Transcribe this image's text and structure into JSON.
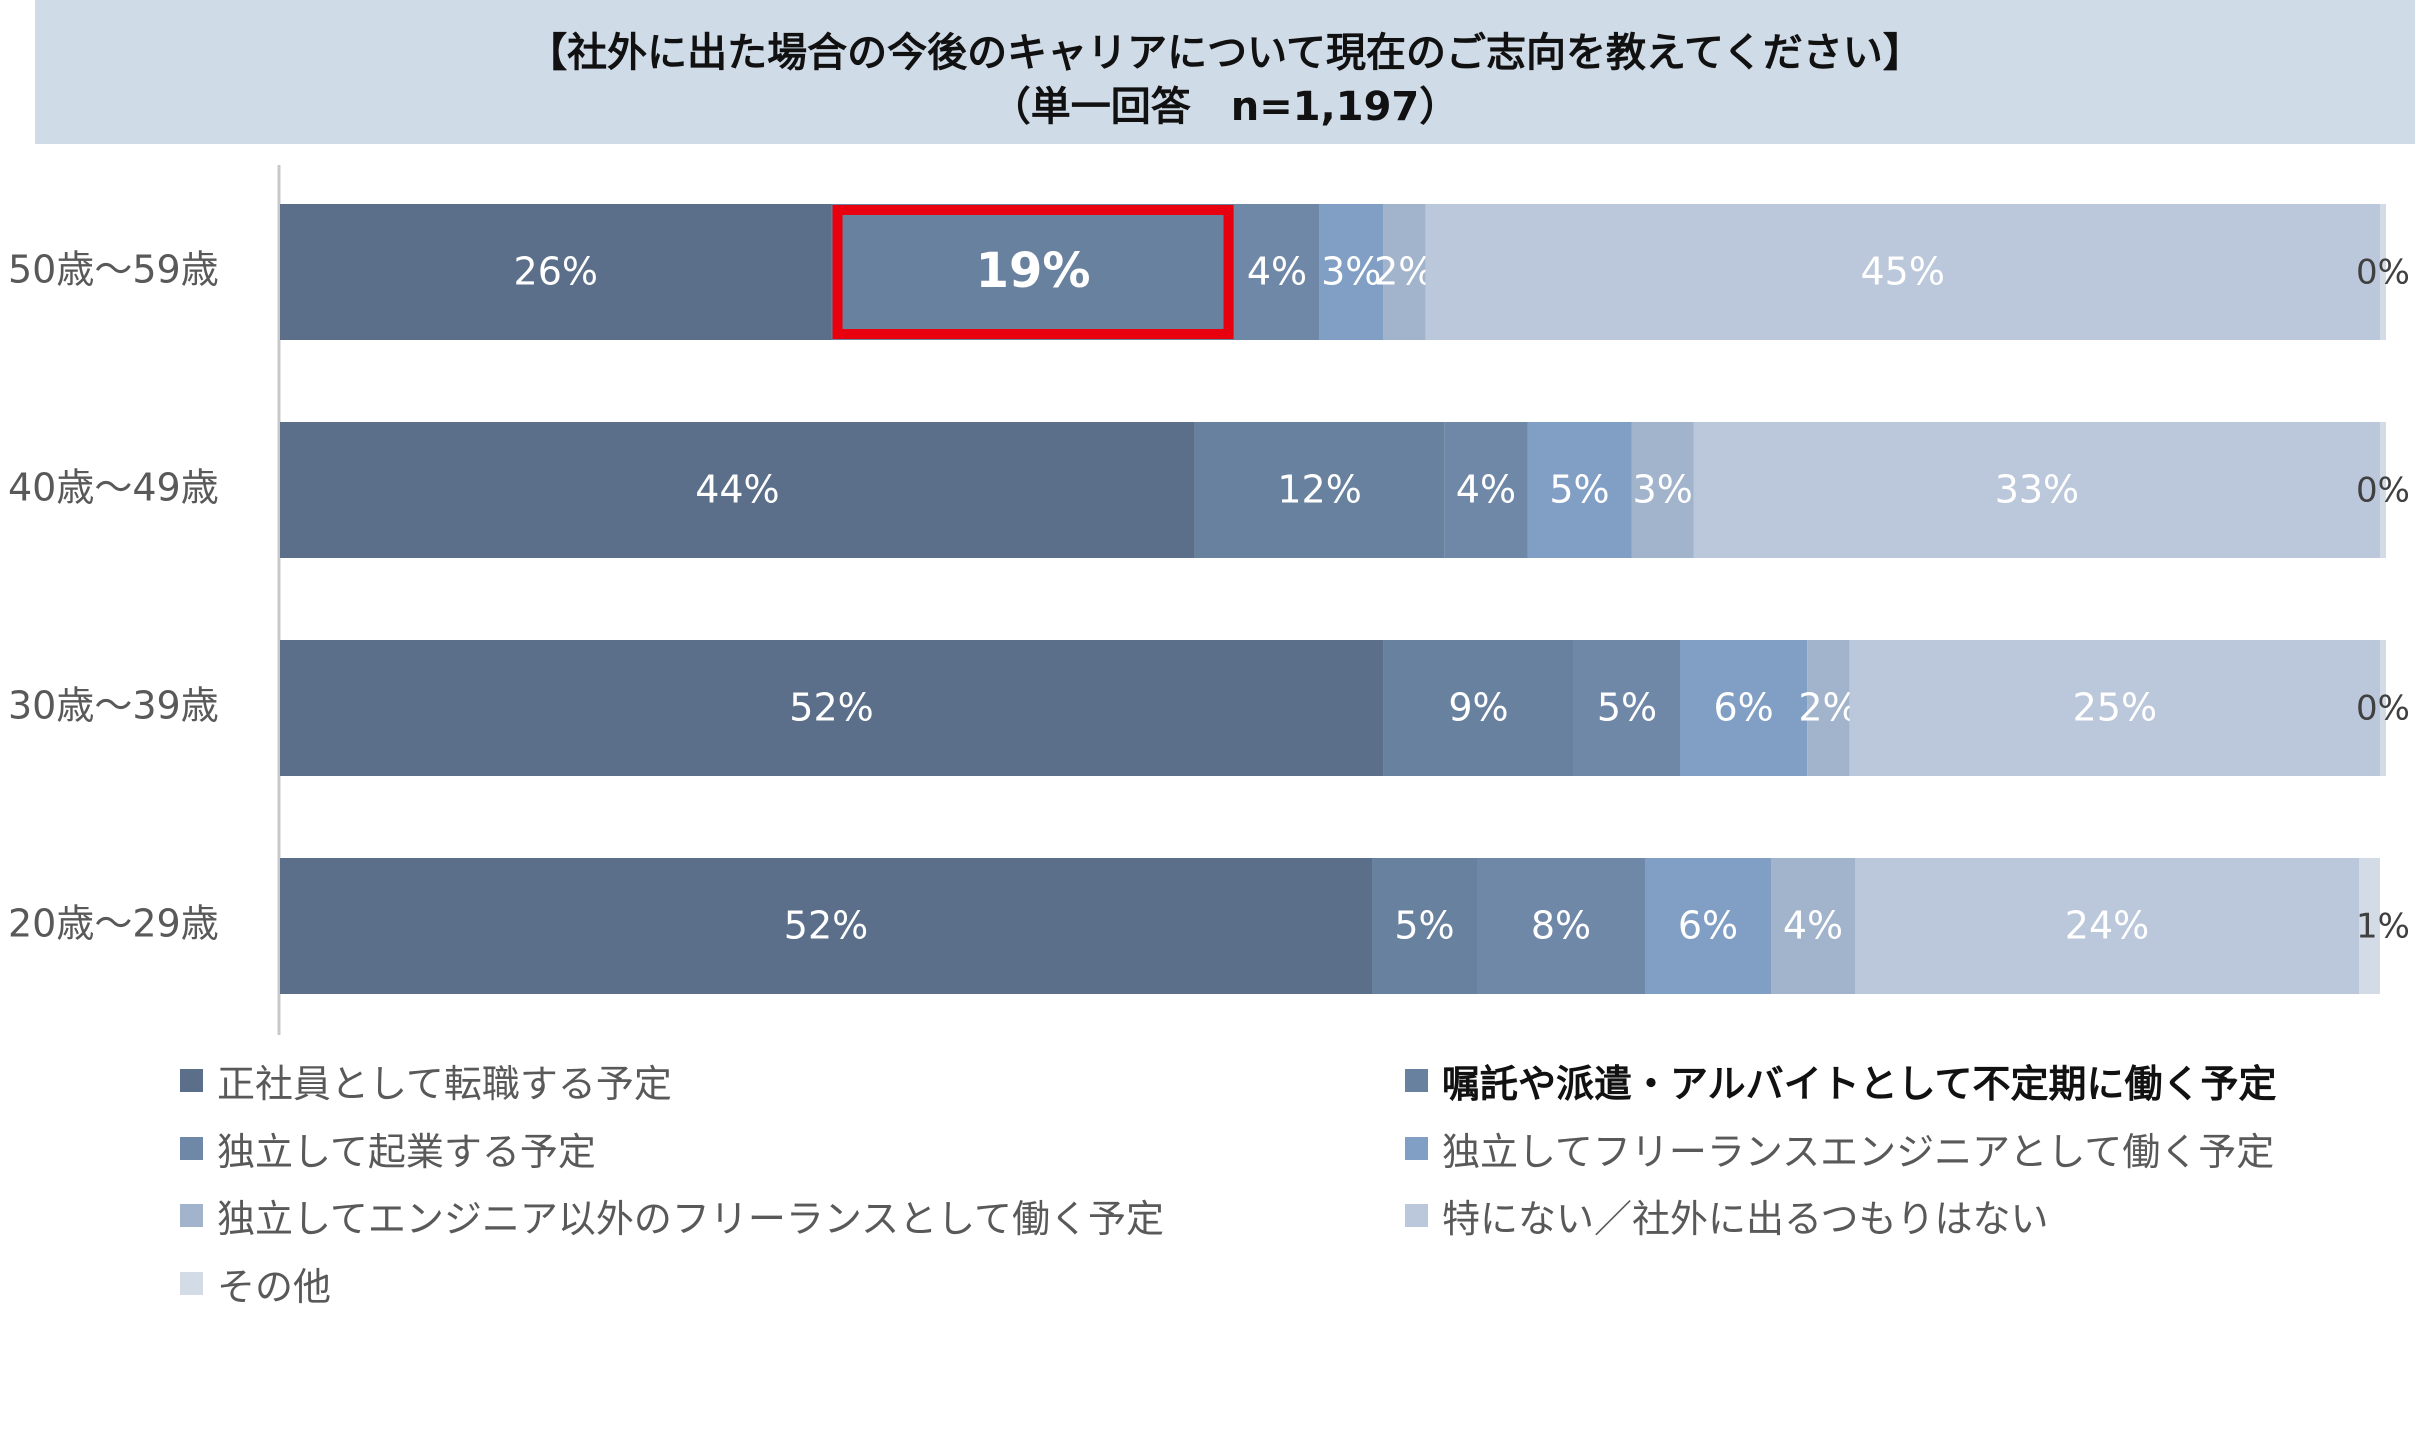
{
  "title": {
    "line1": "【社外に出た場合の今後のキャリアについて現在のご志向を教えてください】",
    "line2": "（単一回答　n=1,197）"
  },
  "colors": {
    "series": [
      "#5b6f8a",
      "#68819e",
      "#7088a8",
      "#819fc4",
      "#a2b3cc",
      "#bbc7da",
      "#d3dbe7"
    ],
    "highlight_border": "#e8000f",
    "axis": "#c8c8c8",
    "category_label": "#595959",
    "data_label": "#ffffff",
    "data_label_outside": "#404040"
  },
  "chart_data": {
    "type": "bar",
    "orientation": "horizontal",
    "stacked": true,
    "title": "【社外に出た場合の今後のキャリアについて現在のご志向を教えてください】（単一回答　n=1,197）",
    "categories": [
      "50歳〜59歳",
      "40歳〜49歳",
      "30歳〜39歳",
      "20歳〜29歳"
    ],
    "series": [
      {
        "name": "正社員として転職する予定",
        "values": [
          26,
          44,
          52,
          52
        ],
        "labels": [
          "26%",
          "44%",
          "52%",
          "52%"
        ]
      },
      {
        "name": "嘱託や派遣・アルバイトとして不定期に働く予定",
        "values": [
          19,
          12,
          9,
          5
        ],
        "labels": [
          "19%",
          "12%",
          "9%",
          "5%"
        ]
      },
      {
        "name": "独立して起業する予定",
        "values": [
          4,
          4,
          5,
          8
        ],
        "labels": [
          "4%",
          "4%",
          "5%",
          "8%"
        ]
      },
      {
        "name": "独立してフリーランスエンジニアとして働く予定",
        "values": [
          3,
          5,
          6,
          6
        ],
        "labels": [
          "3%",
          "5%",
          "6%",
          "6%"
        ]
      },
      {
        "name": "独立してエンジニア以外のフリーランスとして働く予定",
        "values": [
          2,
          3,
          2,
          4
        ],
        "labels": [
          "2%",
          "3%",
          "2%",
          "4%"
        ]
      },
      {
        "name": "特にない／社外に出るつもりはない",
        "values": [
          45,
          33,
          25,
          24
        ],
        "labels": [
          "45%",
          "33%",
          "25%",
          "24%"
        ]
      },
      {
        "name": "その他",
        "values": [
          0,
          0,
          0,
          1
        ],
        "labels": [
          "0%",
          "0%",
          "0%",
          "1%"
        ]
      }
    ],
    "xlim": [
      0,
      100
    ],
    "grid": false,
    "legend_position": "bottom",
    "highlight": {
      "category": "50歳〜59歳",
      "series": "嘱託や派遣・アルバイトとして不定期に働く予定"
    }
  }
}
